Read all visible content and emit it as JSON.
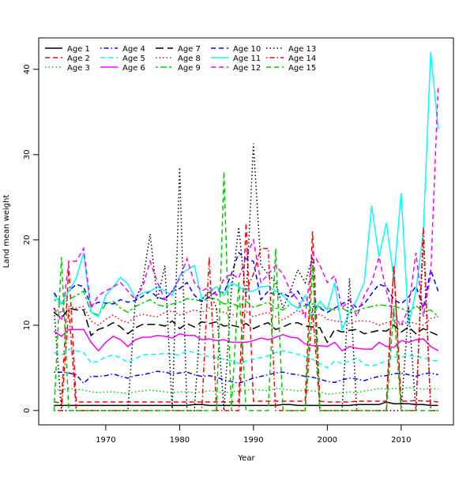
{
  "chart_data": {
    "type": "line",
    "title": "",
    "xlabel": "Year",
    "ylabel": "Land mean weight",
    "xlim": [
      1963,
      2015
    ],
    "ylim": [
      0,
      42
    ],
    "xticks": [
      1970,
      1980,
      1990,
      2000,
      2010
    ],
    "yticks": [
      0,
      10,
      20,
      30,
      40
    ],
    "grid": false,
    "legend_position": "top-left",
    "x_start": 1963,
    "series": [
      {
        "name": "Age 1",
        "color": "#000000",
        "dash": "solid",
        "values": [
          0.6,
          0.6,
          0.6,
          0.6,
          0.6,
          0.6,
          0.6,
          0.6,
          0.6,
          0.6,
          0.6,
          0.6,
          0.6,
          0.6,
          0.6,
          0.6,
          0.6,
          0.6,
          0.6,
          0.7,
          0.7,
          0.6,
          0.6,
          0.6,
          0.6,
          0.6,
          0.6,
          0.6,
          0.6,
          0.6,
          0.6,
          0.7,
          0.7,
          0.6,
          0.6,
          0.6,
          0.6,
          0.6,
          0.6,
          0.6,
          0.6,
          0.7,
          0.7,
          0.7,
          0.7,
          1.0,
          0.8,
          0.8,
          0.8,
          0.7,
          0.7,
          0.6,
          0.6
        ]
      },
      {
        "name": "Age 2",
        "color": "#FF0000",
        "dash": "dashed",
        "values": [
          1.0,
          0.9,
          17.0,
          1.0,
          1.0,
          1.0,
          1.0,
          1.0,
          1.0,
          1.0,
          1.0,
          1.0,
          1.0,
          1.0,
          1.0,
          1.0,
          1.0,
          1.0,
          1.0,
          1.0,
          1.0,
          1.0,
          1.0,
          1.0,
          1.0,
          1.1,
          22.0,
          1.1,
          1.1,
          1.1,
          1.1,
          1.1,
          1.1,
          1.1,
          1.1,
          21.0,
          1.1,
          1.0,
          1.0,
          1.0,
          1.0,
          1.1,
          1.1,
          1.1,
          1.1,
          1.1,
          17.0,
          1.1,
          1.1,
          1.2,
          1.1,
          1.1,
          1.0
        ]
      },
      {
        "name": "Age 3",
        "color": "#00CD00",
        "dash": "dotted",
        "values": [
          2.5,
          2.4,
          2.6,
          2.5,
          2.4,
          2.2,
          2.1,
          2.2,
          2.2,
          2.1,
          2.0,
          2.2,
          2.3,
          2.4,
          2.3,
          2.2,
          2.1,
          2.2,
          2.2,
          2.1,
          2.2,
          2.3,
          2.2,
          2.1,
          2.2,
          2.3,
          2.4,
          2.5,
          2.4,
          2.3,
          2.6,
          2.5,
          2.4,
          2.3,
          2.4,
          2.3,
          2.2,
          1.9,
          2.0,
          2.1,
          2.2,
          2.1,
          2.3,
          2.4,
          2.6,
          2.5,
          2.6,
          2.5,
          2.7,
          2.6,
          2.5,
          2.6,
          2.5
        ]
      },
      {
        "name": "Age 4",
        "color": "#0000FF",
        "dash": "dotdash",
        "values": [
          4.5,
          4.5,
          4.4,
          4.2,
          3.2,
          4.0,
          4.0,
          4.1,
          4.3,
          4.0,
          3.8,
          4.1,
          4.2,
          4.4,
          4.6,
          4.5,
          4.3,
          4.4,
          4.5,
          4.2,
          4.0,
          4.1,
          3.9,
          3.6,
          3.4,
          3.2,
          3.5,
          3.8,
          4.0,
          4.2,
          4.4,
          4.5,
          4.3,
          4.2,
          4.0,
          3.9,
          3.7,
          3.4,
          3.3,
          3.6,
          3.8,
          3.7,
          3.5,
          3.8,
          4.0,
          4.1,
          4.3,
          4.4,
          4.2,
          4.0,
          4.3,
          4.4,
          4.2
        ]
      },
      {
        "name": "Age 5",
        "color": "#00FFFF",
        "dash": "dashed",
        "values": [
          6.8,
          6.5,
          7.2,
          7.0,
          6.8,
          5.6,
          5.8,
          6.3,
          6.5,
          6.2,
          5.6,
          6.1,
          6.5,
          6.6,
          6.6,
          6.7,
          6.6,
          6.5,
          7.0,
          6.8,
          6.5,
          6.3,
          6.2,
          6.0,
          5.8,
          5.5,
          5.8,
          6.0,
          6.2,
          6.4,
          6.8,
          7.0,
          6.8,
          6.6,
          6.3,
          6.0,
          5.5,
          5.0,
          5.8,
          5.5,
          5.8,
          6.2,
          5.4,
          5.2,
          5.5,
          5.8,
          6.3,
          6.2,
          6.5,
          6.3,
          6.2,
          5.9,
          5.8
        ]
      },
      {
        "name": "Age 6",
        "color": "#FF00FF",
        "dash": "solid",
        "values": [
          9.3,
          8.7,
          9.5,
          9.5,
          9.5,
          8.0,
          7.0,
          8.0,
          8.7,
          8.3,
          7.5,
          8.3,
          8.6,
          8.6,
          8.8,
          8.7,
          8.5,
          9.0,
          8.8,
          8.8,
          8.3,
          8.4,
          8.2,
          8.3,
          8.0,
          8.0,
          8.0,
          8.2,
          8.5,
          8.3,
          8.6,
          8.9,
          8.6,
          8.5,
          7.8,
          7.6,
          7.6,
          7.5,
          8.0,
          7.0,
          7.5,
          7.3,
          7.2,
          7.2,
          8.0,
          7.5,
          7.4,
          8.2,
          8.0,
          8.3,
          8.4,
          7.5,
          7.0
        ]
      },
      {
        "name": "Age 7",
        "color": "#000000",
        "dash": "longdash",
        "values": [
          11.5,
          10.8,
          12.0,
          11.8,
          11.8,
          8.8,
          9.5,
          9.8,
          10.3,
          9.8,
          9.0,
          9.7,
          10.1,
          10.1,
          10.1,
          9.9,
          10.5,
          9.6,
          10.2,
          9.8,
          10.4,
          10.2,
          10.4,
          9.9,
          10.0,
          9.8,
          10.2,
          9.6,
          10.0,
          10.3,
          9.5,
          9.8,
          10.2,
          10.3,
          9.9,
          9.8,
          9.7,
          8.0,
          9.5,
          9.2,
          9.4,
          9.5,
          9.0,
          9.2,
          9.4,
          9.3,
          10.0,
          9.2,
          9.8,
          9.0,
          9.6,
          9.2,
          8.8
        ]
      },
      {
        "name": "Age 8",
        "color": "#FF0000",
        "dash": "dotted",
        "values": [
          12.0,
          11.5,
          12.2,
          12.0,
          12.2,
          10.5,
          10.0,
          10.7,
          11.2,
          10.6,
          10.3,
          11.0,
          11.3,
          11.1,
          11.0,
          11.5,
          11.7,
          11.2,
          11.5,
          11.8,
          11.5,
          12.0,
          11.8,
          11.5,
          11.2,
          11.3,
          11.6,
          11.0,
          11.3,
          11.5,
          11.0,
          10.6,
          11.2,
          11.8,
          11.1,
          11.0,
          11.3,
          10.7,
          10.5,
          10.4,
          10.2,
          10.5,
          10.5,
          10.4,
          10.0,
          10.3,
          10.5,
          10.0,
          10.4,
          10.2,
          10.0,
          10.8,
          11.0
        ]
      },
      {
        "name": "Age 9",
        "color": "#00CD00",
        "dash": "twodash",
        "values": [
          13.0,
          12.5,
          13.0,
          13.5,
          14.0,
          11.5,
          11.2,
          12.5,
          12.8,
          12.0,
          11.5,
          12.2,
          12.6,
          13.0,
          12.4,
          12.2,
          12.5,
          12.7,
          13.1,
          13.0,
          12.8,
          13.2,
          13.1,
          12.5,
          12.6,
          12.2,
          12.8,
          12.1,
          12.4,
          12.7,
          12.0,
          11.8,
          12.5,
          12.0,
          12.3,
          12.5,
          12.1,
          12.0,
          11.8,
          12.0,
          11.5,
          11.7,
          12.0,
          12.2,
          12.4,
          12.3,
          12.2,
          12.0,
          11.5,
          12.3,
          11.6,
          11.8,
          11.0
        ]
      },
      {
        "name": "Age 10",
        "color": "#0000FF",
        "dash": "dashed",
        "values": [
          13.8,
          12.5,
          14.0,
          14.8,
          14.5,
          12.3,
          12.7,
          12.6,
          12.5,
          13.0,
          12.7,
          12.9,
          13.4,
          14.0,
          13.3,
          13.0,
          14.0,
          14.3,
          15.0,
          13.5,
          12.8,
          13.3,
          14.0,
          13.8,
          16.0,
          18.5,
          17.8,
          17.5,
          13.0,
          14.0,
          13.5,
          13.8,
          13.2,
          14.0,
          12.5,
          12.2,
          12.0,
          11.5,
          12.0,
          12.5,
          13.0,
          12.0,
          12.5,
          13.7,
          14.8,
          14.5,
          13.0,
          12.5,
          13.3,
          14.6,
          12.0,
          16.5,
          14.0
        ]
      },
      {
        "name": "Age 11",
        "color": "#00FFFF",
        "dash": "solid",
        "values": [
          13.5,
          12.5,
          14.0,
          15.5,
          18.5,
          11.5,
          11.0,
          13.5,
          14.5,
          15.6,
          14.8,
          13.2,
          13.8,
          14.0,
          14.5,
          14.0,
          13.5,
          15.8,
          16.5,
          17.0,
          13.0,
          14.0,
          14.5,
          13.5,
          15.0,
          14.5,
          14.0,
          14.0,
          14.5,
          14.6,
          14.0,
          13.5,
          12.5,
          12.0,
          13.5,
          11.0,
          12.8,
          11.8,
          15.0,
          9.5,
          11.5,
          13.0,
          15.0,
          24.0,
          18.0,
          22.0,
          15.5,
          25.5,
          10.0,
          14.0,
          21.0,
          42.0,
          33.0
        ]
      },
      {
        "name": "Age 12",
        "color": "#FF00FF",
        "dash": "dashed",
        "values": [
          12.0,
          10.5,
          17.5,
          17.5,
          19.0,
          12.0,
          13.5,
          14.0,
          14.5,
          15.0,
          14.0,
          13.0,
          14.5,
          17.5,
          15.0,
          13.0,
          14.0,
          15.5,
          17.8,
          15.0,
          14.0,
          14.5,
          13.5,
          15.5,
          16.0,
          15.5,
          18.0,
          20.0,
          15.0,
          16.0,
          17.0,
          16.0,
          14.0,
          13.0,
          11.0,
          18.5,
          17.0,
          15.0,
          15.8,
          12.0,
          13.0,
          11.0,
          13.5,
          15.0,
          18.0,
          14.0,
          11.0,
          10.0,
          12.0,
          18.5,
          11.0,
          16.0,
          38.0
        ]
      },
      {
        "name": "Age 13",
        "color": "#000000",
        "dash": "dotted",
        "values": [
          12.0,
          0,
          0,
          0,
          0,
          0,
          0,
          0,
          0,
          0,
          0,
          13.0,
          15.0,
          20.7,
          13.0,
          17.0,
          0,
          28.5,
          0,
          0,
          13.0,
          14.0,
          12.0,
          0,
          14.0,
          21.5,
          13.0,
          31.3,
          17.0,
          16.0,
          15.0,
          12.0,
          14.0,
          16.5,
          15.0,
          18.0,
          0,
          0,
          0,
          0,
          15.5,
          0,
          0,
          0,
          0,
          0,
          0,
          0,
          12.0,
          0,
          20.0,
          0,
          0
        ]
      },
      {
        "name": "Age 14",
        "color": "#FF0000",
        "dash": "dotdash",
        "values": [
          0,
          0,
          12.0,
          0,
          0,
          0,
          0,
          0,
          0,
          0,
          0,
          0,
          0,
          0,
          0,
          0,
          0,
          0,
          0,
          0,
          0,
          18.0,
          0,
          0,
          0,
          0,
          14.0,
          16.0,
          19.0,
          19.0,
          0,
          0,
          0,
          0,
          0,
          12.0,
          0,
          0,
          0,
          0,
          0,
          0,
          0,
          0,
          0,
          0,
          17.0,
          0,
          0,
          0,
          21.5,
          0,
          0
        ]
      },
      {
        "name": "Age 15",
        "color": "#00CD00",
        "dash": "dashed",
        "values": [
          0,
          18.0,
          0,
          0,
          0,
          0,
          0,
          0,
          0,
          0,
          0,
          0,
          0,
          0,
          0,
          0,
          0,
          0,
          0,
          0,
          0,
          0,
          0,
          28.0,
          0,
          15.0,
          0,
          0,
          0,
          0,
          19.0,
          0,
          0,
          0,
          0,
          17.0,
          0,
          0,
          0,
          0,
          0,
          0,
          0,
          0,
          0,
          0,
          12.0,
          0,
          0,
          0,
          0,
          0,
          0
        ]
      }
    ]
  }
}
